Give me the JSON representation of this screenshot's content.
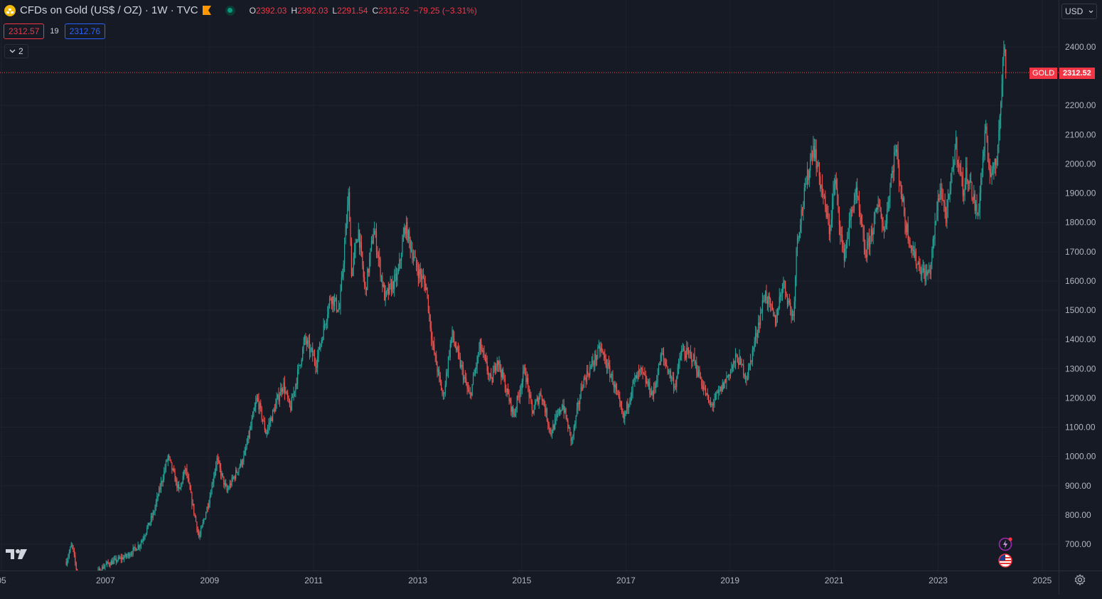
{
  "header": {
    "symbol_icon": "gold-coin-icon",
    "title": "CFDs on Gold (US$ / OZ) · 1W · TVC",
    "ohlc": {
      "open_label": "O",
      "open": "2392.03",
      "high_label": "H",
      "high": "2392.03",
      "low_label": "L",
      "low": "2291.54",
      "close_label": "C",
      "close": "2312.52",
      "change": "−79.25 (−3.31%)"
    }
  },
  "trade": {
    "sell": "2312.57",
    "spread": "19",
    "buy": "2312.76"
  },
  "indicators": {
    "count": "2"
  },
  "currency": {
    "label": "USD"
  },
  "last_price": {
    "symbol": "GOLD",
    "value": "2312.52"
  },
  "colors": {
    "up": "#26a69a",
    "down": "#ef5350",
    "background": "#161a25",
    "grid": "#1e222d"
  },
  "chart_data": {
    "type": "candlestick",
    "interval": "1W",
    "x_axis": {
      "tick_labels": [
        "05",
        "2007",
        "2009",
        "2011",
        "2013",
        "2015",
        "2017",
        "2019",
        "2021",
        "2023",
        "2025"
      ]
    },
    "y_axis": {
      "tick_labels": [
        "700.00",
        "800.00",
        "900.00",
        "1000.00",
        "1100.00",
        "1200.00",
        "1300.00",
        "1400.00",
        "1500.00",
        "1600.00",
        "1700.00",
        "1800.00",
        "1900.00",
        "2000.00",
        "2100.00",
        "2200.00",
        "2400.00"
      ],
      "range": [
        600,
        2440
      ]
    },
    "trend": [
      [
        "2006-04-01",
        640
      ],
      [
        "2006-05-10",
        700
      ],
      [
        "2006-06-20",
        590
      ],
      [
        "2006-10-01",
        585
      ],
      [
        "2007-01-01",
        630
      ],
      [
        "2007-06-01",
        660
      ],
      [
        "2007-09-01",
        700
      ],
      [
        "2007-12-01",
        800
      ],
      [
        "2008-03-15",
        1000
      ],
      [
        "2008-06-01",
        880
      ],
      [
        "2008-07-15",
        960
      ],
      [
        "2008-10-20",
        720
      ],
      [
        "2009-01-01",
        860
      ],
      [
        "2009-02-20",
        990
      ],
      [
        "2009-05-01",
        880
      ],
      [
        "2009-09-01",
        1000
      ],
      [
        "2009-12-01",
        1200
      ],
      [
        "2010-02-01",
        1080
      ],
      [
        "2010-06-01",
        1250
      ],
      [
        "2010-07-20",
        1160
      ],
      [
        "2010-11-01",
        1400
      ],
      [
        "2011-01-20",
        1320
      ],
      [
        "2011-05-01",
        1550
      ],
      [
        "2011-07-01",
        1500
      ],
      [
        "2011-09-05",
        1900
      ],
      [
        "2011-09-25",
        1620
      ],
      [
        "2011-11-10",
        1780
      ],
      [
        "2011-12-29",
        1560
      ],
      [
        "2012-02-28",
        1780
      ],
      [
        "2012-05-15",
        1540
      ],
      [
        "2012-08-15",
        1620
      ],
      [
        "2012-10-05",
        1790
      ],
      [
        "2012-12-20",
        1650
      ],
      [
        "2013-03-01",
        1580
      ],
      [
        "2013-04-15",
        1380
      ],
      [
        "2013-06-28",
        1200
      ],
      [
        "2013-08-28",
        1420
      ],
      [
        "2013-12-31",
        1200
      ],
      [
        "2014-03-15",
        1380
      ],
      [
        "2014-06-01",
        1250
      ],
      [
        "2014-07-10",
        1340
      ],
      [
        "2014-11-05",
        1140
      ],
      [
        "2015-01-22",
        1300
      ],
      [
        "2015-03-15",
        1150
      ],
      [
        "2015-05-15",
        1220
      ],
      [
        "2015-07-24",
        1080
      ],
      [
        "2015-10-15",
        1180
      ],
      [
        "2015-12-17",
        1050
      ],
      [
        "2016-03-01",
        1250
      ],
      [
        "2016-07-06",
        1370
      ],
      [
        "2016-10-01",
        1260
      ],
      [
        "2016-12-15",
        1125
      ],
      [
        "2017-02-20",
        1250
      ],
      [
        "2017-04-15",
        1290
      ],
      [
        "2017-07-10",
        1210
      ],
      [
        "2017-09-08",
        1350
      ],
      [
        "2017-12-12",
        1240
      ],
      [
        "2018-01-25",
        1360
      ],
      [
        "2018-04-15",
        1340
      ],
      [
        "2018-08-16",
        1170
      ],
      [
        "2018-11-01",
        1230
      ],
      [
        "2019-02-20",
        1340
      ],
      [
        "2019-05-01",
        1270
      ],
      [
        "2019-09-04",
        1560
      ],
      [
        "2019-11-15",
        1460
      ],
      [
        "2020-01-08",
        1600
      ],
      [
        "2020-03-20",
        1470
      ],
      [
        "2020-04-15",
        1740
      ],
      [
        "2020-08-07",
        2070
      ],
      [
        "2020-11-30",
        1770
      ],
      [
        "2021-01-06",
        1950
      ],
      [
        "2021-03-08",
        1680
      ],
      [
        "2021-06-01",
        1910
      ],
      [
        "2021-08-09",
        1690
      ],
      [
        "2021-11-16",
        1870
      ],
      [
        "2021-12-15",
        1760
      ],
      [
        "2022-03-08",
        2060
      ],
      [
        "2022-05-15",
        1800
      ],
      [
        "2022-07-21",
        1680
      ],
      [
        "2022-09-28",
        1620
      ],
      [
        "2022-11-03",
        1630
      ],
      [
        "2023-01-15",
        1930
      ],
      [
        "2023-02-28",
        1810
      ],
      [
        "2023-05-04",
        2070
      ],
      [
        "2023-06-29",
        1900
      ],
      [
        "2023-07-20",
        1980
      ],
      [
        "2023-10-05",
        1820
      ],
      [
        "2023-12-04",
        2140
      ],
      [
        "2023-12-13",
        1980
      ],
      [
        "2024-02-14",
        1990
      ],
      [
        "2024-03-08",
        2180
      ],
      [
        "2024-04-12",
        2430
      ],
      [
        "2024-04-22",
        2312
      ]
    ]
  },
  "icons": {
    "logo": "tradingview-logo-icon",
    "lightning": "lightning-icon",
    "flag": "us-flag-icon",
    "settings": "gear-icon"
  }
}
